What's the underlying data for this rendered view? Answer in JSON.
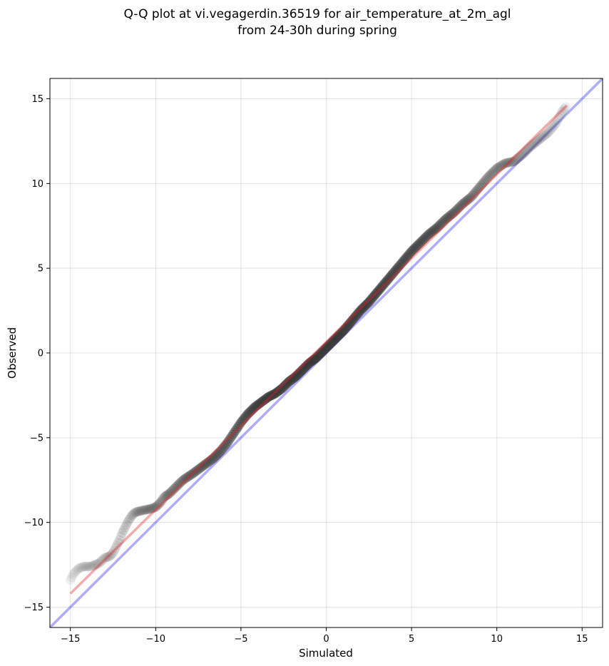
{
  "chart_data": {
    "type": "scatter",
    "title_lines": [
      "Q-Q plot at vi.vegagerdin.36519 for air_temperature_at_2m_agl",
      "from 24-30h during spring"
    ],
    "xlabel": "Simulated",
    "ylabel": "Observed",
    "xlim": [
      -16.2,
      16.2
    ],
    "ylim": [
      -16.2,
      16.2
    ],
    "xticks": [
      -15,
      -10,
      -5,
      0,
      5,
      10,
      15
    ],
    "yticks": [
      -15,
      -10,
      -5,
      0,
      5,
      10,
      15
    ],
    "xtick_labels": [
      "−15",
      "−10",
      "−5",
      "0",
      "5",
      "10",
      "15"
    ],
    "ytick_labels": [
      "−15",
      "−10",
      "−5",
      "0",
      "5",
      "10",
      "15"
    ],
    "grid": true,
    "reference_line": {
      "slope": 1,
      "intercept": 0,
      "color": "#0000ee"
    },
    "fit_line": {
      "x": [
        -15.0,
        14.1
      ],
      "y": [
        -14.2,
        14.6
      ],
      "color": "#e52222"
    },
    "quantile_points": {
      "x": [
        -15.0,
        -14.8,
        -14.5,
        -14.2,
        -13.8,
        -13.3,
        -13.0,
        -12.7,
        -12.5,
        -12.3,
        -12.1,
        -12.0,
        -11.8,
        -11.6,
        -11.4,
        -11.2,
        -10.8,
        -10.3,
        -10.0,
        -9.7,
        -9.5,
        -9.2,
        -9.0,
        -8.7,
        -8.4,
        -8.1,
        -7.8,
        -7.4,
        -7.0,
        -6.6,
        -6.2,
        -5.8,
        -5.4,
        -5.0,
        -4.6,
        -4.2,
        -3.8,
        -3.4,
        -3.0,
        -2.6,
        -2.2,
        -1.8,
        -1.4,
        -1.0,
        -0.6,
        -0.2,
        0.2,
        0.6,
        1.0,
        1.5,
        2.0,
        2.5,
        3.0,
        3.5,
        4.0,
        4.5,
        5.0,
        5.5,
        6.0,
        6.5,
        7.0,
        7.5,
        8.0,
        8.5,
        9.0,
        9.5,
        10.0,
        10.5,
        11.0,
        11.5,
        12.0,
        12.5,
        13.0,
        13.5,
        13.8,
        14.1
      ],
      "y": [
        -13.4,
        -13.0,
        -12.7,
        -12.6,
        -12.6,
        -12.4,
        -12.1,
        -12.0,
        -11.8,
        -11.4,
        -11.0,
        -10.7,
        -10.3,
        -9.9,
        -9.6,
        -9.4,
        -9.3,
        -9.2,
        -9.1,
        -8.8,
        -8.5,
        -8.3,
        -8.1,
        -7.8,
        -7.5,
        -7.3,
        -7.1,
        -6.8,
        -6.5,
        -6.2,
        -5.8,
        -5.3,
        -4.7,
        -4.1,
        -3.6,
        -3.2,
        -2.9,
        -2.6,
        -2.4,
        -2.1,
        -1.7,
        -1.4,
        -1.0,
        -0.6,
        -0.3,
        0.1,
        0.5,
        0.9,
        1.3,
        1.9,
        2.5,
        3.0,
        3.6,
        4.2,
        4.8,
        5.4,
        6.0,
        6.5,
        7.0,
        7.4,
        7.9,
        8.3,
        8.8,
        9.2,
        9.8,
        10.4,
        10.9,
        11.2,
        11.3,
        11.7,
        12.2,
        12.6,
        13.0,
        13.6,
        14.2,
        14.6
      ]
    }
  }
}
